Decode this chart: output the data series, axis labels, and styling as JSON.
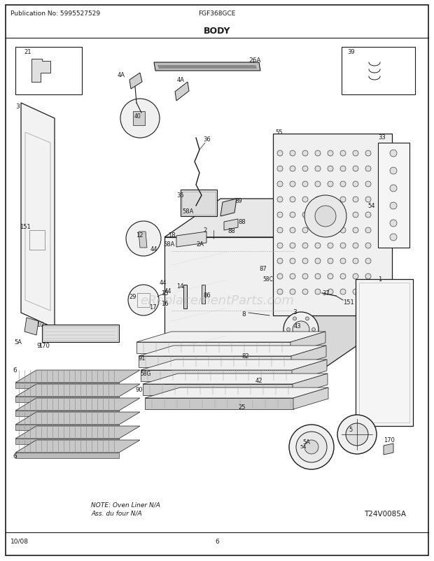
{
  "title": "BODY",
  "pub_no": "Publication No: 5995527529",
  "model": "FGF368GCE",
  "date": "10/08",
  "page": "6",
  "watermark": "eReplacementParts.com",
  "note_line1": "NOTE: Oven Liner N/A",
  "note_line2": "Ass. du four N/A",
  "catalog_no": "T24V0085A",
  "bg_color": "#ffffff",
  "fig_width": 6.2,
  "fig_height": 8.03,
  "dpi": 100
}
